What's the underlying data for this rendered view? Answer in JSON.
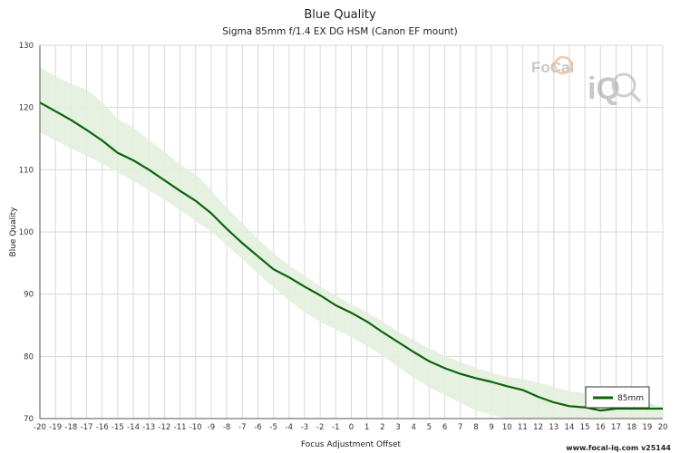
{
  "chart_data": {
    "type": "line",
    "title": "Blue Quality",
    "subtitle": "Sigma 85mm f/1.4 EX DG HSM (Canon EF mount)",
    "xlabel": "Focus Adjustment Offset",
    "ylabel": "Blue Quality",
    "xlim": [
      -20,
      20
    ],
    "ylim": [
      70,
      130
    ],
    "x_ticks": [
      -20,
      -19,
      -18,
      -17,
      -16,
      -15,
      -14,
      -13,
      -12,
      -11,
      -10,
      -9,
      -8,
      -7,
      -6,
      -5,
      -4,
      -3,
      -2,
      -1,
      0,
      1,
      2,
      3,
      4,
      5,
      6,
      7,
      8,
      9,
      10,
      11,
      12,
      13,
      14,
      15,
      16,
      17,
      18,
      19,
      20
    ],
    "y_ticks": [
      70,
      80,
      90,
      100,
      110,
      120,
      130
    ],
    "grid": true,
    "legend_position": "bottom-right",
    "series": [
      {
        "name": "85mm",
        "color": "#0a640a",
        "band_color": "#e3efdf",
        "x": [
          -20,
          -19,
          -18,
          -17,
          -16,
          -15,
          -14,
          -13,
          -12,
          -11,
          -10,
          -9,
          -8,
          -7,
          -6,
          -5,
          -4,
          -3,
          -2,
          -1,
          0,
          1,
          2,
          3,
          4,
          5,
          6,
          7,
          8,
          9,
          10,
          11,
          12,
          13,
          14,
          15,
          16,
          17,
          18,
          19,
          20
        ],
        "values": [
          120.8,
          119.4,
          118.0,
          116.4,
          114.7,
          112.7,
          111.5,
          110.0,
          108.3,
          106.6,
          105.0,
          103.0,
          100.5,
          98.2,
          96.1,
          94.0,
          92.7,
          91.2,
          89.8,
          88.2,
          87.0,
          85.6,
          83.9,
          82.3,
          80.7,
          79.2,
          78.1,
          77.2,
          76.5,
          75.9,
          75.2,
          74.6,
          73.5,
          72.6,
          72.0,
          71.8,
          71.3,
          71.6,
          71.6,
          71.6,
          71.6
        ],
        "upper": [
          126.5,
          125.0,
          123.8,
          122.9,
          120.9,
          118.2,
          116.8,
          114.8,
          112.9,
          110.8,
          109.3,
          106.7,
          103.9,
          101.4,
          98.9,
          96.6,
          94.6,
          93.0,
          91.3,
          89.8,
          88.4,
          87.1,
          85.6,
          84.0,
          82.6,
          81.3,
          80.1,
          79.1,
          78.2,
          77.4,
          76.7,
          76.4,
          75.8,
          75.1,
          74.4,
          74.1,
          73.7,
          73.3,
          73.0,
          72.6,
          71.8
        ],
        "lower": [
          116.0,
          114.7,
          113.4,
          112.2,
          111.0,
          109.6,
          108.2,
          106.7,
          105.2,
          103.5,
          101.8,
          100.0,
          97.9,
          95.6,
          93.3,
          91.1,
          89.0,
          87.1,
          85.5,
          84.3,
          83.1,
          81.7,
          80.1,
          78.3,
          76.6,
          75.0,
          73.8,
          72.5,
          71.3,
          70.6,
          70.0,
          70.0,
          70.0,
          70.0,
          70.0,
          70.0,
          70.0,
          70.0,
          70.0,
          70.0,
          70.0
        ]
      }
    ]
  },
  "watermark": {
    "text_top": "FoCal",
    "text_bottom": "iQ"
  },
  "footer": "www.focal-iq.com  v25144"
}
